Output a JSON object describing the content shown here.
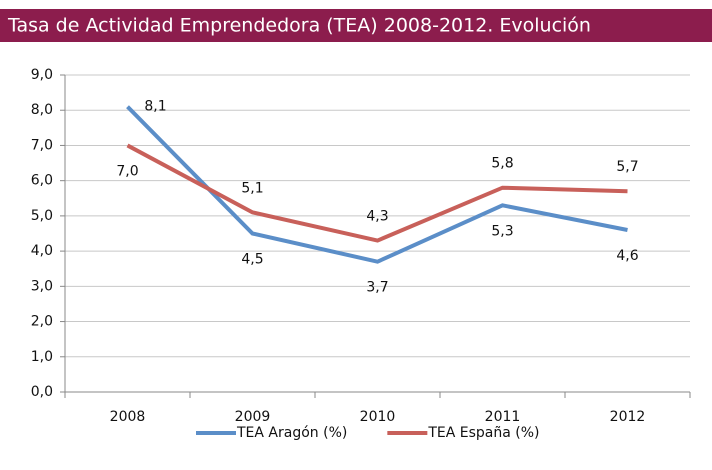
{
  "chart_data": {
    "type": "line",
    "title": "Tasa de Actividad Emprendedora (TEA) 2008-2012. Evolución",
    "categories": [
      "2008",
      "2009",
      "2010",
      "2011",
      "2012"
    ],
    "series": [
      {
        "name": "TEA Aragón (%)",
        "color": "#5b8ec8",
        "values": [
          8.1,
          4.5,
          3.7,
          5.3,
          4.6
        ],
        "value_labels": [
          "8,1",
          "4,5",
          "3,7",
          "5,3",
          "4,6"
        ]
      },
      {
        "name": "TEA España (%)",
        "color": "#c8605a",
        "values": [
          7.0,
          5.1,
          4.3,
          5.8,
          5.7
        ],
        "value_labels": [
          "7,0",
          "5,1",
          "4,3",
          "5,8",
          "5,7"
        ]
      }
    ],
    "ylim": [
      0,
      9
    ],
    "yticks": [
      {
        "value": 0,
        "label": "0,0"
      },
      {
        "value": 1,
        "label": "1,0"
      },
      {
        "value": 2,
        "label": "2,0"
      },
      {
        "value": 3,
        "label": "3,0"
      },
      {
        "value": 4,
        "label": "4,0"
      },
      {
        "value": 5,
        "label": "5,0"
      },
      {
        "value": 6,
        "label": "6,0"
      },
      {
        "value": 7,
        "label": "7,0"
      },
      {
        "value": 8,
        "label": "8,0"
      },
      {
        "value": 9,
        "label": "9,0"
      }
    ],
    "grid": true,
    "legend": "bottom"
  }
}
